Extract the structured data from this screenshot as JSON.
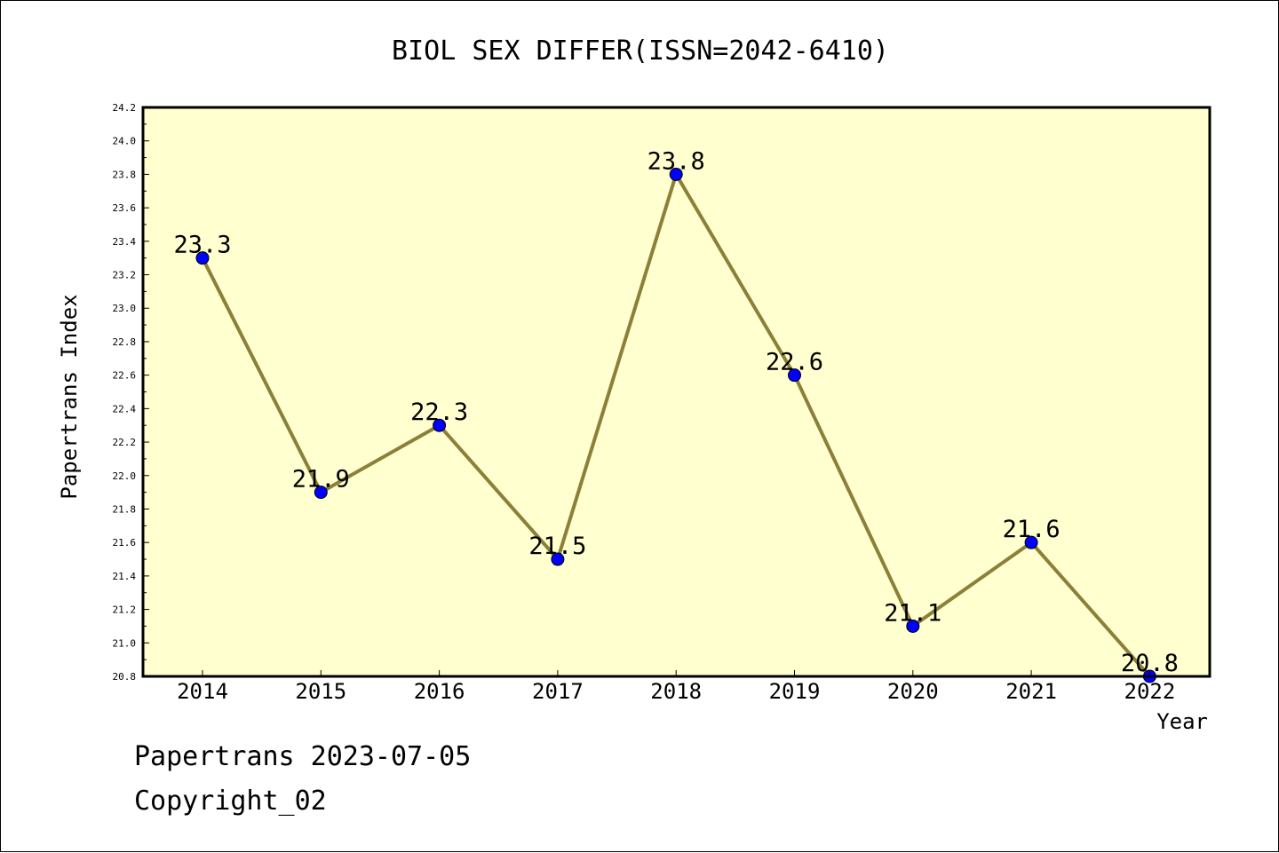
{
  "chart_data": {
    "type": "line",
    "title": "BIOL SEX DIFFER(ISSN=2042-6410)",
    "xlabel": "Year",
    "ylabel": "Papertrans Index",
    "categories": [
      "2014",
      "2015",
      "2016",
      "2017",
      "2018",
      "2019",
      "2020",
      "2021",
      "2022"
    ],
    "series": [
      {
        "values": [
          23.3,
          21.9,
          22.3,
          21.5,
          23.8,
          22.6,
          21.1,
          21.6,
          20.8
        ]
      }
    ],
    "data_labels": [
      "23.3",
      "21.9",
      "22.3",
      "21.5",
      "23.8",
      "22.6",
      "21.1",
      "21.6",
      "20.8"
    ],
    "ylim": [
      20.8,
      24.2
    ],
    "y_ticks": [
      "20.8",
      "21.0",
      "21.2",
      "21.4",
      "21.6",
      "21.8",
      "22.0",
      "22.2",
      "22.4",
      "22.6",
      "22.8",
      "23.0",
      "23.2",
      "23.4",
      "23.6",
      "23.8",
      "24.0",
      "24.2"
    ],
    "grid": false,
    "legend": "none",
    "colors": {
      "plot_background": "#ffffd0",
      "line": "#8c7f38",
      "marker": "#0000ff",
      "axis": "#000000"
    }
  },
  "footer": {
    "line1": "Papertrans 2023-07-05",
    "line2": "Copyright_02"
  }
}
